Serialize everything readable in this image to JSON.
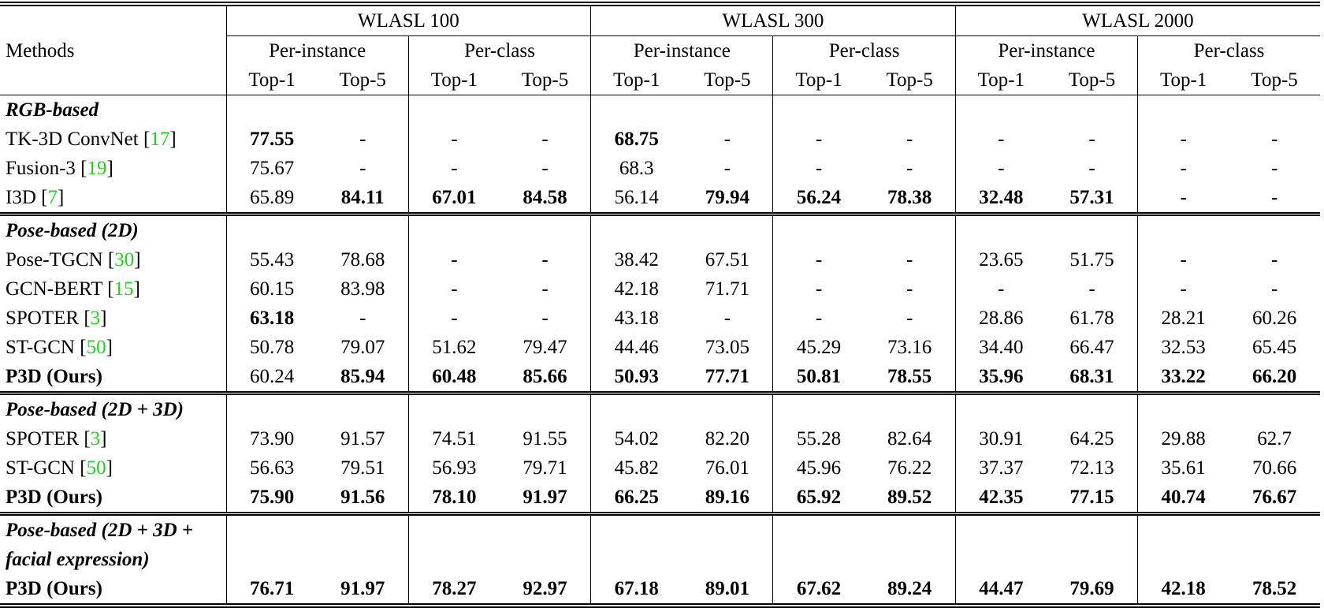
{
  "header": {
    "methods_label": "Methods",
    "datasets": [
      "WLASL 100",
      "WLASL 300",
      "WLASL 2000"
    ],
    "subgroups": [
      "Per-instance",
      "Per-class"
    ],
    "metrics": [
      "Top-1",
      "Top-5"
    ]
  },
  "citation_color": "#1fd11f",
  "sections": [
    {
      "title_lines": [
        "RGB-based"
      ],
      "rows": [
        {
          "method": "TK-3D ConvNet",
          "cite": "17",
          "method_bold": false,
          "values": [
            "77.55",
            "-",
            "-",
            "-",
            "68.75",
            "-",
            "-",
            "-",
            "-",
            "-",
            "-",
            "-"
          ],
          "bold_indices": [
            0,
            4
          ]
        },
        {
          "method": "Fusion-3",
          "cite": "19",
          "method_bold": false,
          "values": [
            "75.67",
            "-",
            "-",
            "-",
            "68.3",
            "-",
            "-",
            "-",
            "-",
            "-",
            "-",
            "-"
          ],
          "bold_indices": []
        },
        {
          "method": "I3D",
          "cite": "7",
          "method_bold": false,
          "values": [
            "65.89",
            "84.11",
            "67.01",
            "84.58",
            "56.14",
            "79.94",
            "56.24",
            "78.38",
            "32.48",
            "57.31",
            "-",
            "-"
          ],
          "bold_indices": [
            1,
            2,
            3,
            5,
            6,
            7,
            8,
            9
          ]
        }
      ]
    },
    {
      "title_lines": [
        "Pose-based (2D)"
      ],
      "rows": [
        {
          "method": "Pose-TGCN",
          "cite": "30",
          "method_bold": false,
          "values": [
            "55.43",
            "78.68",
            "-",
            "-",
            "38.42",
            "67.51",
            "-",
            "-",
            "23.65",
            "51.75",
            "-",
            "-"
          ],
          "bold_indices": []
        },
        {
          "method": "GCN-BERT",
          "cite": "15",
          "method_bold": false,
          "values": [
            "60.15",
            "83.98",
            "-",
            "-",
            "42.18",
            "71.71",
            "-",
            "-",
            "-",
            "-",
            "-",
            "-"
          ],
          "bold_indices": []
        },
        {
          "method": "SPOTER",
          "cite": "3",
          "method_bold": false,
          "values": [
            "63.18",
            "-",
            "-",
            "-",
            "43.18",
            "-",
            "-",
            "-",
            "28.86",
            "61.78",
            "28.21",
            "60.26"
          ],
          "bold_indices": [
            0
          ]
        },
        {
          "method": "ST-GCN",
          "cite": "50",
          "method_bold": false,
          "values": [
            "50.78",
            "79.07",
            "51.62",
            "79.47",
            "44.46",
            "73.05",
            "45.29",
            "73.16",
            "34.40",
            "66.47",
            "32.53",
            "65.45"
          ],
          "bold_indices": []
        },
        {
          "method": "P3D (Ours)",
          "cite": "",
          "method_bold": true,
          "values": [
            "60.24",
            "85.94",
            "60.48",
            "85.66",
            "50.93",
            "77.71",
            "50.81",
            "78.55",
            "35.96",
            "68.31",
            "33.22",
            "66.20"
          ],
          "bold_indices": [
            1,
            2,
            3,
            4,
            5,
            6,
            7,
            8,
            9,
            10,
            11
          ]
        }
      ]
    },
    {
      "title_lines": [
        "Pose-based (2D + 3D)"
      ],
      "rows": [
        {
          "method": "SPOTER",
          "cite": "3",
          "method_bold": false,
          "values": [
            "73.90",
            "91.57",
            "74.51",
            "91.55",
            "54.02",
            "82.20",
            "55.28",
            "82.64",
            "30.91",
            "64.25",
            "29.88",
            "62.7"
          ],
          "bold_indices": []
        },
        {
          "method": "ST-GCN",
          "cite": "50",
          "method_bold": false,
          "values": [
            "56.63",
            "79.51",
            "56.93",
            "79.71",
            "45.82",
            "76.01",
            "45.96",
            "76.22",
            "37.37",
            "72.13",
            "35.61",
            "70.66"
          ],
          "bold_indices": []
        },
        {
          "method": "P3D (Ours)",
          "cite": "",
          "method_bold": true,
          "values": [
            "75.90",
            "91.56",
            "78.10",
            "91.97",
            "66.25",
            "89.16",
            "65.92",
            "89.52",
            "42.35",
            "77.15",
            "40.74",
            "76.67"
          ],
          "bold_indices": [
            0,
            1,
            2,
            3,
            4,
            5,
            6,
            7,
            8,
            9,
            10,
            11
          ]
        }
      ]
    },
    {
      "title_lines": [
        "Pose-based (2D + 3D +",
        "facial expression)"
      ],
      "rows": [
        {
          "method": "P3D (Ours)",
          "cite": "",
          "method_bold": true,
          "values": [
            "76.71",
            "91.97",
            "78.27",
            "92.97",
            "67.18",
            "89.01",
            "67.62",
            "89.24",
            "44.47",
            "79.69",
            "42.18",
            "78.52"
          ],
          "bold_indices": [
            0,
            1,
            2,
            3,
            4,
            5,
            6,
            7,
            8,
            9,
            10,
            11
          ]
        }
      ]
    }
  ]
}
